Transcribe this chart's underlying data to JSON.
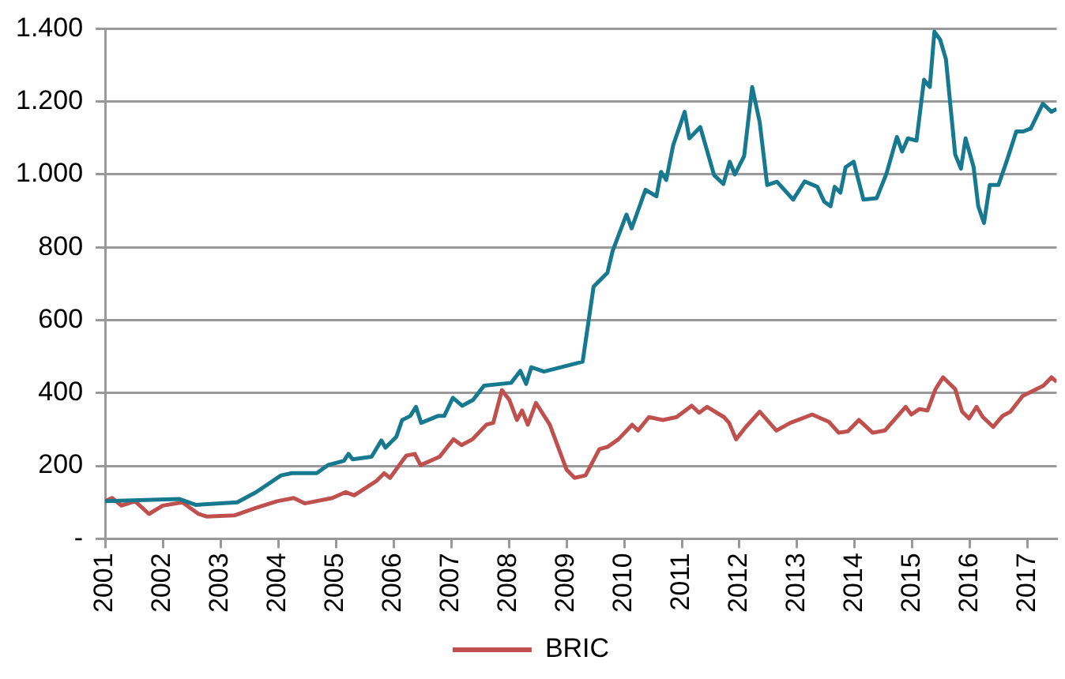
{
  "chart_data": {
    "type": "line",
    "x": [
      2001,
      2002.29,
      2002.57,
      2003.29,
      2003.62,
      2004.05,
      2004.24,
      2004.67,
      2004.86,
      2005.14,
      2005.22,
      2005.29,
      2005.62,
      2005.79,
      2005.86,
      2006.05,
      2006.15,
      2006.29,
      2006.39,
      2006.48,
      2006.77,
      2006.88,
      2007.03,
      2007.19,
      2007.38,
      2007.57,
      2008.04,
      2008.2,
      2008.3,
      2008.39,
      2008.61,
      2009.28,
      2009.47,
      2009.71,
      2009.8,
      2010.04,
      2010.13,
      2010.37,
      2010.56,
      2010.64,
      2010.73,
      2010.85,
      2011.05,
      2011.13,
      2011.32,
      2011.56,
      2011.72,
      2011.83,
      2011.92,
      2012.08,
      2012.22,
      2012.35,
      2012.48,
      2012.65,
      2012.93,
      2013.13,
      2013.35,
      2013.47,
      2013.58,
      2013.65,
      2013.75,
      2013.84,
      2013.98,
      2014.15,
      2014.38,
      2014.55,
      2014.73,
      2014.82,
      2014.92,
      2015.07,
      2015.2,
      2015.3,
      2015.38,
      2015.48,
      2015.58,
      2015.74,
      2015.84,
      2015.92,
      2016.06,
      2016.14,
      2016.24,
      2016.34,
      2016.49,
      2016.63,
      2016.8,
      2016.92,
      2017.05,
      2017.26,
      2017.41,
      2017.5
    ],
    "series": [
      {
        "color": "#17798f",
        "values": [
          103,
          109,
          93,
          100,
          128,
          174,
          180,
          180,
          202,
          214,
          233,
          218,
          225,
          270,
          250,
          280,
          326,
          337,
          362,
          318,
          337,
          337,
          387,
          365,
          381,
          420,
          428,
          461,
          425,
          471,
          459,
          486,
          692,
          730,
          790,
          890,
          852,
          958,
          940,
          1007,
          985,
          1080,
          1172,
          1099,
          1130,
          998,
          974,
          1035,
          1000,
          1050,
          1240,
          1144,
          971,
          980,
          931,
          981,
          966,
          925,
          913,
          966,
          950,
          1020,
          1035,
          931,
          935,
          1003,
          1103,
          1063,
          1099,
          1093,
          1260,
          1240,
          1392,
          1370,
          1316,
          1055,
          1016,
          1099,
          1020,
          913,
          867,
          971,
          971,
          1035,
          1118,
          1118,
          1126,
          1194,
          1172,
          1180
        ]
      },
      {
        "name": "BRIC",
        "color": "#c0504d",
        "x": [
          2001,
          2001.12,
          2001.28,
          2001.52,
          2001.76,
          2002,
          2002.34,
          2002.62,
          2002.76,
          2003.24,
          2003.6,
          2003.98,
          2004.27,
          2004.46,
          2004.94,
          2005.17,
          2005.32,
          2005.7,
          2005.84,
          2005.94,
          2006.22,
          2006.37,
          2006.47,
          2006.8,
          2007.04,
          2007.18,
          2007.37,
          2007.61,
          2007.73,
          2007.88,
          2008.01,
          2008.14,
          2008.23,
          2008.33,
          2008.47,
          2008.71,
          2009,
          2009.14,
          2009.33,
          2009.57,
          2009.71,
          2009.9,
          2010.14,
          2010.24,
          2010.43,
          2010.67,
          2010.91,
          2011.17,
          2011.3,
          2011.44,
          2011.73,
          2011.82,
          2011.94,
          2012.11,
          2012.35,
          2012.64,
          2012.88,
          2013.26,
          2013.55,
          2013.72,
          2013.88,
          2014.07,
          2014.31,
          2014.52,
          2014.88,
          2014.98,
          2015.12,
          2015.26,
          2015.4,
          2015.53,
          2015.74,
          2015.86,
          2015.98,
          2016.11,
          2016.22,
          2016.4,
          2016.56,
          2016.7,
          2016.91,
          2017.27,
          2017.41,
          2017.5
        ],
        "values": [
          103,
          112,
          91,
          103,
          68,
          91,
          100,
          68,
          61,
          64,
          84,
          103,
          112,
          97,
          112,
          128,
          119,
          158,
          180,
          167,
          228,
          233,
          202,
          225,
          273,
          257,
          273,
          313,
          318,
          408,
          381,
          326,
          352,
          313,
          373,
          313,
          190,
          167,
          174,
          246,
          252,
          273,
          313,
          297,
          334,
          326,
          334,
          365,
          346,
          362,
          334,
          318,
          273,
          307,
          349,
          297,
          318,
          341,
          321,
          291,
          295,
          326,
          291,
          297,
          362,
          341,
          356,
          352,
          411,
          443,
          411,
          349,
          330,
          362,
          334,
          307,
          337,
          349,
          392,
          420,
          443,
          431
        ]
      }
    ],
    "xlim": [
      2001,
      2017.5
    ],
    "xticks": [
      2001,
      2002,
      2003,
      2004,
      2005,
      2006,
      2007,
      2008,
      2009,
      2010,
      2011,
      2012,
      2013,
      2014,
      2015,
      2016,
      2017
    ],
    "ylim": [
      0,
      1400
    ],
    "yticks": [
      {
        "value": 0,
        "label": "-"
      },
      {
        "value": 200,
        "label": "200"
      },
      {
        "value": 400,
        "label": "400"
      },
      {
        "value": 600,
        "label": "600"
      },
      {
        "value": 800,
        "label": "800"
      },
      {
        "value": 1000,
        "label": "1.000"
      },
      {
        "value": 1200,
        "label": "1.200"
      },
      {
        "value": 1400,
        "label": "1.400"
      }
    ],
    "grid": "y",
    "legend": "bottom",
    "marker": "none",
    "line_style": "solid"
  }
}
